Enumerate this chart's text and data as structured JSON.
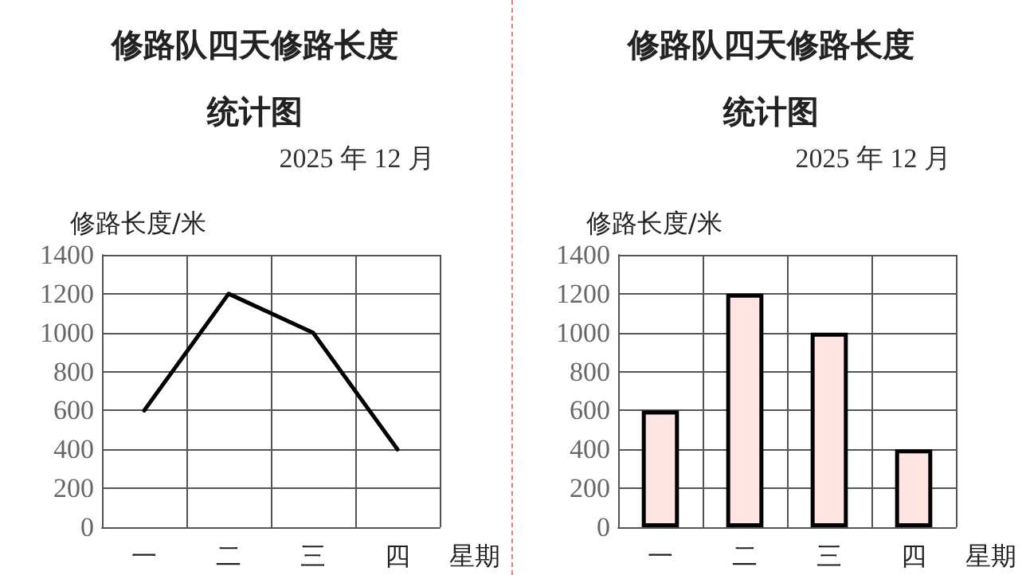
{
  "chart_data": [
    {
      "type": "line",
      "title": "修路队四天修路长度统计图",
      "subtitle": "2025 年 12 月",
      "ylabel": "修路长度/米",
      "xlabel": "星期",
      "categories": [
        "一",
        "二",
        "三",
        "四"
      ],
      "series": [
        {
          "color": "#000000",
          "values": [
            600,
            1200,
            1000,
            400
          ]
        }
      ],
      "ylim": [
        0,
        1400
      ],
      "yticks": [
        0,
        200,
        400,
        600,
        800,
        1000,
        1200,
        1400
      ],
      "grid": true,
      "marker": "none",
      "line_style": "solid"
    },
    {
      "type": "bar",
      "title": "修路队四天修路长度统计图",
      "subtitle": "2025 年 12 月",
      "ylabel": "修路长度/米",
      "xlabel": "星期",
      "categories": [
        "一",
        "二",
        "三",
        "四"
      ],
      "series": [
        {
          "color": "#ffe4e1",
          "values": [
            600,
            1200,
            1000,
            400
          ]
        }
      ],
      "ylim": [
        0,
        1400
      ],
      "yticks": [
        0,
        200,
        400,
        600,
        800,
        1000,
        1200,
        1400
      ],
      "grid": true
    }
  ]
}
